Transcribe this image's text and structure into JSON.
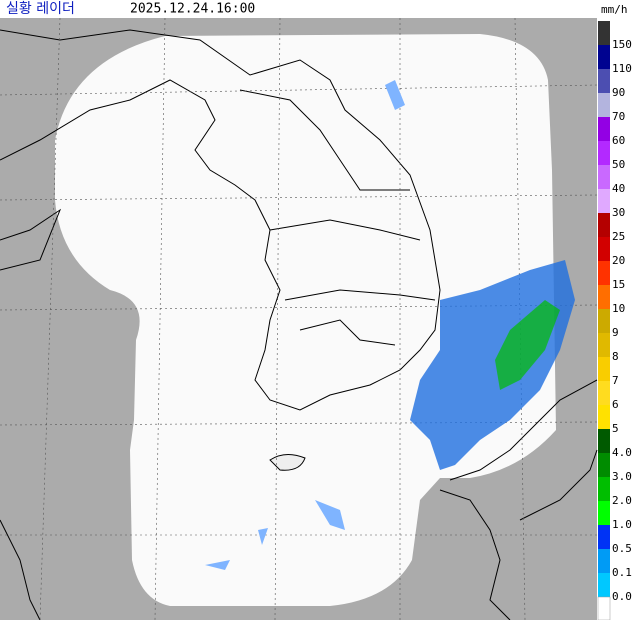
{
  "header": {
    "title": "실황 레이더",
    "timestamp": "2025.12.24.16:00"
  },
  "legend": {
    "unit": "mm/h",
    "items": [
      {
        "label": "150",
        "color": "#333333"
      },
      {
        "label": "110",
        "color": "#000390"
      },
      {
        "label": "90",
        "color": "#4c4eb1"
      },
      {
        "label": "70",
        "color": "#b3b4de"
      },
      {
        "label": "60",
        "color": "#9300e4"
      },
      {
        "label": "50",
        "color": "#b329ff"
      },
      {
        "label": "40",
        "color": "#c969ff"
      },
      {
        "label": "30",
        "color": "#e0a9ff"
      },
      {
        "label": "25",
        "color": "#b40000"
      },
      {
        "label": "20",
        "color": "#d20000"
      },
      {
        "label": "15",
        "color": "#ff3200"
      },
      {
        "label": "10",
        "color": "#ff6e00"
      },
      {
        "label": "9",
        "color": "#ccaa00"
      },
      {
        "label": "8",
        "color": "#e0b900"
      },
      {
        "label": "7",
        "color": "#f9cd00"
      },
      {
        "label": "6",
        "color": "#ffdc1f"
      },
      {
        "label": "5",
        "color": "#ffe100"
      },
      {
        "label": "4.0",
        "color": "#005a00"
      },
      {
        "label": "3.0",
        "color": "#008c00"
      },
      {
        "label": "2.0",
        "color": "#00be00"
      },
      {
        "label": "1.0",
        "color": "#00ff00"
      },
      {
        "label": "0.5",
        "color": "#0033f5"
      },
      {
        "label": "0.1",
        "color": "#009bf5"
      },
      {
        "label": "0.0",
        "color": "#00c8ff"
      }
    ]
  }
}
